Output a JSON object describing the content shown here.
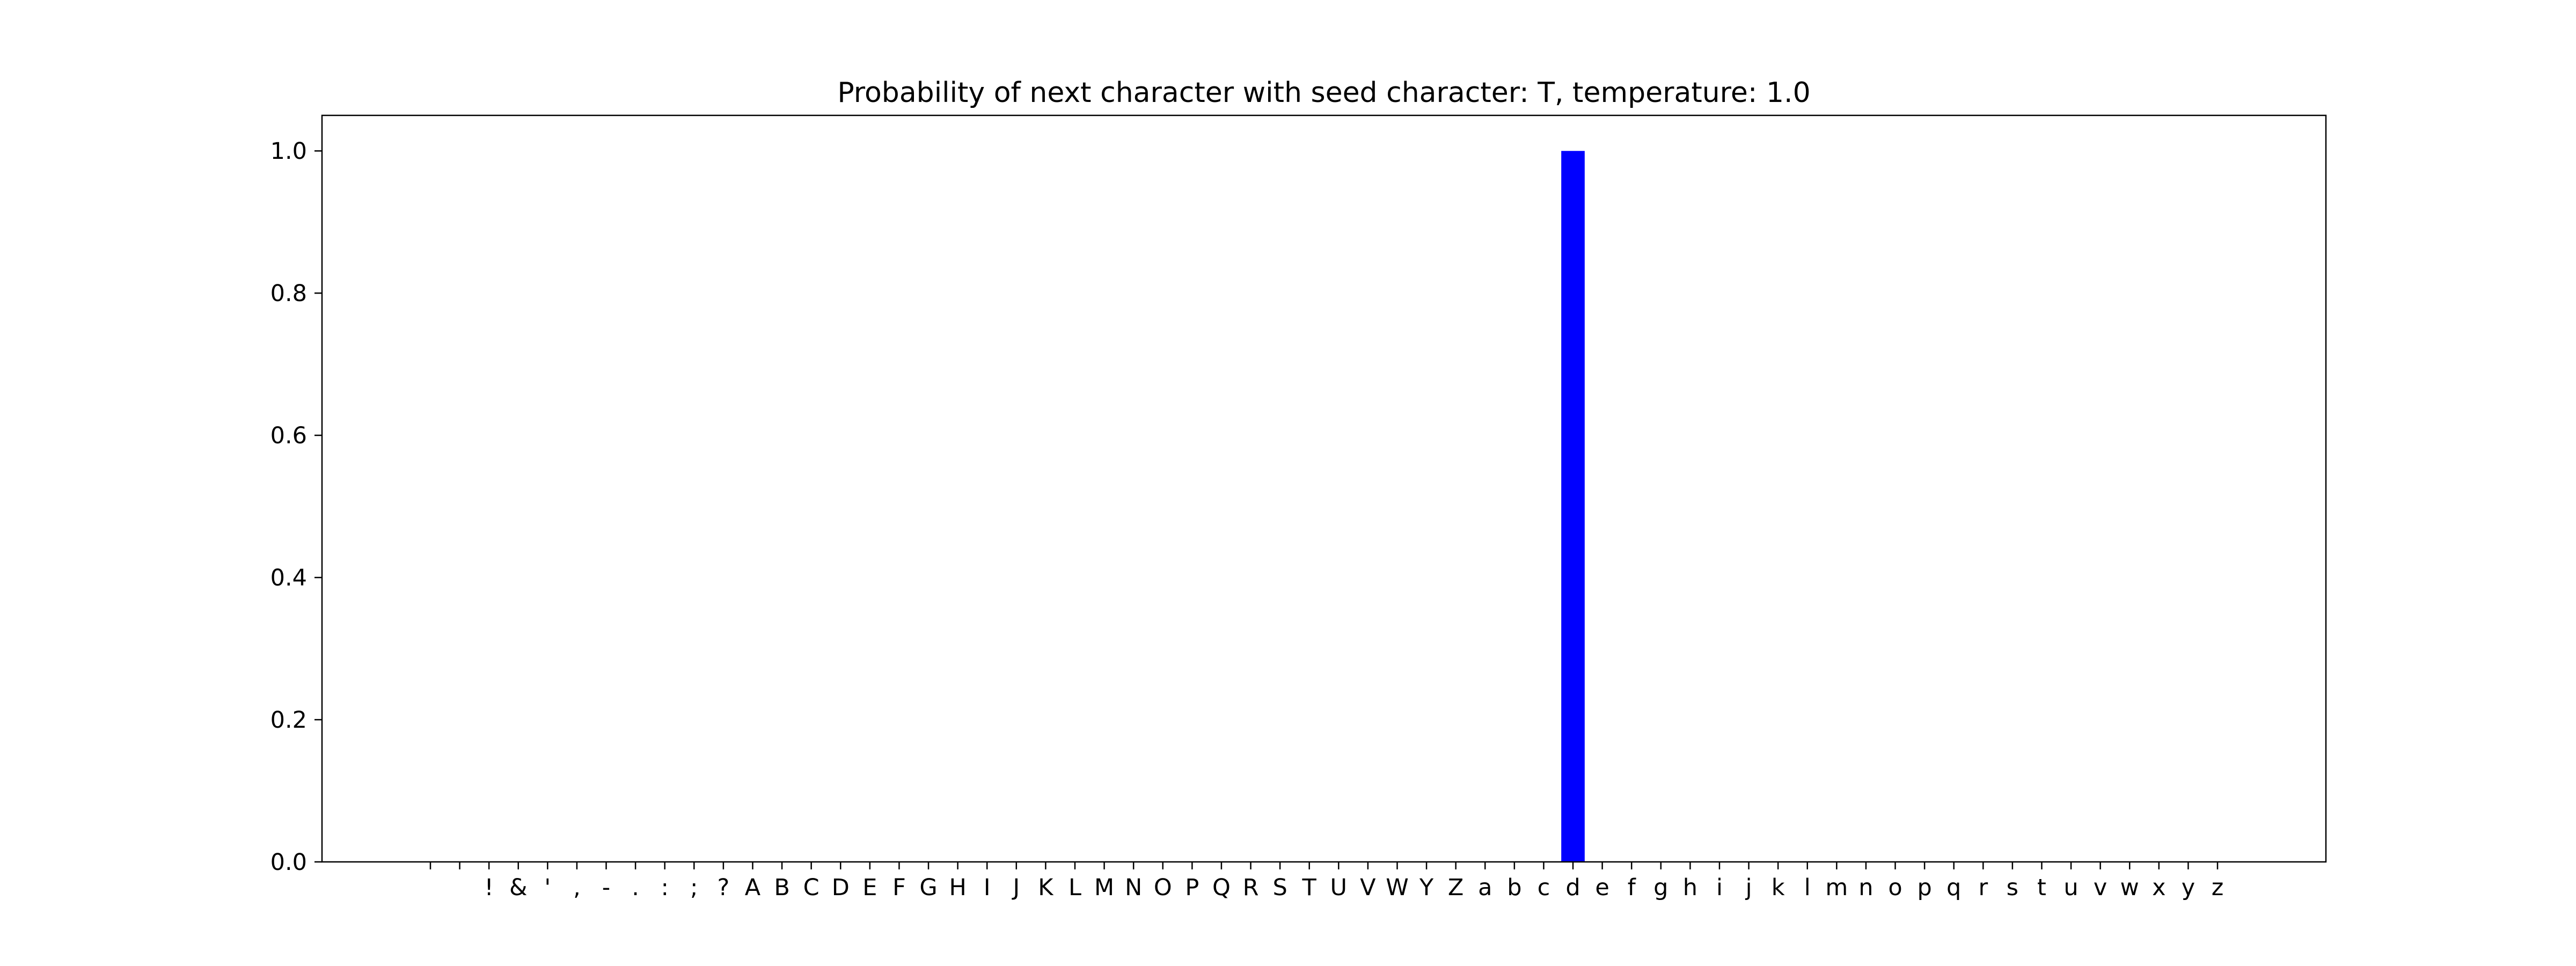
{
  "chart_data": {
    "type": "bar",
    "title": "Probability of next character with seed character: T, temperature: 1.0",
    "xlabel": "",
    "ylabel": "",
    "ylim": [
      0,
      1.05
    ],
    "yticks": [
      0.0,
      0.2,
      0.4,
      0.6,
      0.8,
      1.0
    ],
    "ytick_labels": [
      "0.0",
      "0.2",
      "0.4",
      "0.6",
      "0.8",
      "1.0"
    ],
    "grid": false,
    "bar_color": "#0000ff",
    "categories": [
      "\n",
      " ",
      "!",
      "&",
      "'",
      ",",
      "-",
      ".",
      ":",
      ";",
      "?",
      "A",
      "B",
      "C",
      "D",
      "E",
      "F",
      "G",
      "H",
      "I",
      "J",
      "K",
      "L",
      "M",
      "N",
      "O",
      "P",
      "Q",
      "R",
      "S",
      "T",
      "U",
      "V",
      "W",
      "Y",
      "Z",
      "a",
      "b",
      "c",
      "d",
      "e",
      "f",
      "g",
      "h",
      "i",
      "j",
      "k",
      "l",
      "m",
      "n",
      "o",
      "p",
      "q",
      "r",
      "s",
      "t",
      "u",
      "v",
      "w",
      "x",
      "y",
      "z"
    ],
    "values": [
      0,
      0,
      0,
      0,
      0,
      0,
      0,
      0,
      0,
      0,
      0,
      0,
      0,
      0,
      0,
      0,
      0,
      0,
      0,
      0,
      0,
      0,
      0,
      0,
      0,
      0,
      0,
      0,
      0,
      0,
      0,
      0,
      0,
      0,
      0,
      0,
      0,
      0,
      0,
      1.0,
      0,
      0,
      0,
      0,
      0,
      0,
      0,
      0,
      0,
      0,
      0,
      0,
      0,
      0,
      0,
      0,
      0,
      0,
      0,
      0,
      0,
      0
    ]
  }
}
